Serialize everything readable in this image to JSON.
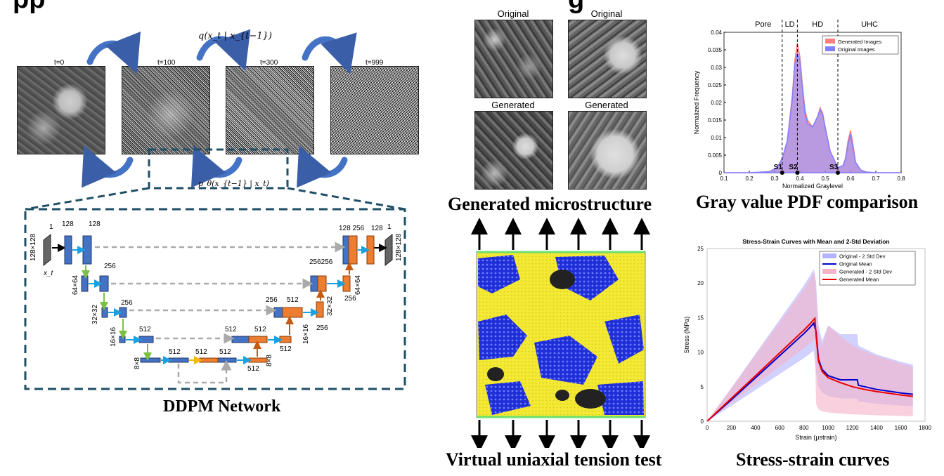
{
  "top_title_fragment": "pp",
  "top_title_fragment_2": "g",
  "diffusion": {
    "steps": [
      "t=0",
      "t=100",
      "t=300",
      "t=999"
    ],
    "forward_eq": "q(x_t | x_{t−1})",
    "reverse_eq": "p_θ(x_{t−1} | x_t)"
  },
  "network": {
    "title": "DDPM Network",
    "labels": {
      "in_ch": "1",
      "c128a": "128",
      "c128b": "128",
      "in_size": "128×128",
      "xt": "x_t",
      "c256a": "256",
      "s64": "64×64",
      "c256b": "256",
      "s32": "32×32",
      "c512a": "512",
      "s16": "16×16",
      "s8": "8×8",
      "b512a": "512",
      "b512b": "512",
      "b512c": "512",
      "u512a": "512",
      "u512b": "512",
      "u512c": "512",
      "u512d": "512",
      "s8r": "8×8",
      "u256": "256",
      "u512e": "512",
      "s16r": "16×16",
      "u256b": "256",
      "u256c": "256256",
      "s32r": "32×32",
      "u256d": "256",
      "s64r": "64×64",
      "u128": "128 256",
      "u128b": "128",
      "out_ch": "1",
      "out_size": "128×128"
    }
  },
  "microstructure": {
    "title": "Generated microstructure",
    "labels": [
      "Original",
      "Original",
      "Generated",
      "Generated"
    ]
  },
  "tension": {
    "title": "Virtual uniaxial tension test"
  },
  "pdf_chart": {
    "title": "Gray value PDF comparison",
    "regions": [
      "Pore",
      "LD",
      "HD",
      "UHC"
    ],
    "thresholds": [
      "S1",
      "S2",
      "S3"
    ]
  },
  "stress_chart": {
    "title": "Stress-strain curves"
  },
  "chart_data": [
    {
      "type": "area",
      "title": "",
      "xlabel": "Normalized Graylevel",
      "ylabel": "Normalized Frequency",
      "xlim": [
        0.1,
        0.8
      ],
      "ylim": [
        0,
        0.04
      ],
      "xticks": [
        0.1,
        0.2,
        0.3,
        0.4,
        0.5,
        0.6,
        0.7,
        0.8
      ],
      "yticks": [
        0,
        0.005,
        0.01,
        0.015,
        0.02,
        0.025,
        0.03,
        0.035,
        0.04
      ],
      "legend": "top-right",
      "thresholds_x": [
        0.33,
        0.39,
        0.55
      ],
      "x": [
        0.1,
        0.2,
        0.28,
        0.31,
        0.33,
        0.35,
        0.37,
        0.38,
        0.39,
        0.4,
        0.41,
        0.42,
        0.43,
        0.45,
        0.47,
        0.48,
        0.49,
        0.5,
        0.52,
        0.55,
        0.57,
        0.58,
        0.59,
        0.6,
        0.61,
        0.62,
        0.64,
        0.66,
        0.7,
        0.8
      ],
      "series": [
        {
          "name": "Generated Images",
          "color": "#ff7f7f",
          "values": [
            0,
            0,
            0.0003,
            0.0015,
            0.004,
            0.009,
            0.022,
            0.032,
            0.037,
            0.033,
            0.025,
            0.018,
            0.015,
            0.013,
            0.016,
            0.0185,
            0.017,
            0.013,
            0.006,
            0.0015,
            0.002,
            0.004,
            0.009,
            0.012,
            0.008,
            0.003,
            0.0008,
            0.0002,
            0,
            0
          ]
        },
        {
          "name": "Original Images",
          "color": "#8080ff",
          "values": [
            0,
            0,
            0.0003,
            0.0015,
            0.004,
            0.009,
            0.021,
            0.031,
            0.034,
            0.032,
            0.024,
            0.017,
            0.014,
            0.013,
            0.016,
            0.018,
            0.0165,
            0.013,
            0.006,
            0.0015,
            0.002,
            0.004,
            0.008,
            0.011,
            0.007,
            0.003,
            0.0008,
            0.0002,
            0,
            0
          ]
        }
      ]
    },
    {
      "type": "line",
      "title": "Stress-Strain Curves with Mean and 2-Std Deviation",
      "xlabel": "Strain (μstrain)",
      "ylabel": "Stress (MPa)",
      "xlim": [
        0,
        1800
      ],
      "ylim": [
        0,
        25
      ],
      "xticks": [
        0,
        200,
        400,
        600,
        800,
        1000,
        1200,
        1400,
        1600,
        1800
      ],
      "yticks": [
        0,
        5,
        10,
        15,
        20,
        25
      ],
      "legend": "top-left",
      "series": [
        {
          "name": "Original - 2 Std Dev",
          "color": "#b3b3ff"
        },
        {
          "name": "Original Mean",
          "color": "#0000cc",
          "x": [
            0,
            200,
            400,
            600,
            800,
            850,
            880,
            900,
            920,
            950,
            1000,
            1100,
            1240,
            1250,
            1400,
            1600,
            1700
          ],
          "y": [
            0,
            3.1,
            6.3,
            9.5,
            12.7,
            13.6,
            14.2,
            13.0,
            9.0,
            7.5,
            6.6,
            6.0,
            6.0,
            5.2,
            4.6,
            4.1,
            3.9
          ]
        },
        {
          "name": "Generated - 2 Std Dev",
          "color": "#f5b3c8"
        },
        {
          "name": "Generated Mean",
          "color": "#ee0000",
          "x": [
            0,
            200,
            400,
            600,
            800,
            850,
            890,
            900,
            920,
            950,
            1000,
            1100,
            1200,
            1300,
            1400,
            1600,
            1700
          ],
          "y": [
            0,
            3.3,
            6.6,
            9.9,
            13.2,
            14.1,
            14.9,
            12.5,
            8.7,
            7.2,
            6.3,
            5.6,
            5.0,
            4.6,
            4.3,
            3.8,
            3.6
          ]
        }
      ]
    }
  ]
}
